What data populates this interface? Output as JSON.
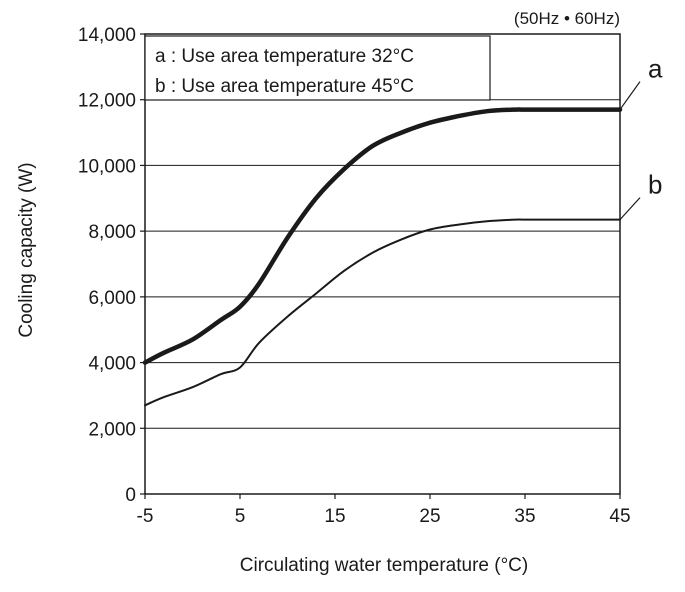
{
  "chart_data": {
    "type": "line",
    "title": "",
    "note": "(50Hz • 60Hz)",
    "xlabel": "Circulating water temperature (°C)",
    "ylabel": "Cooling capacity (W)",
    "xlim": [
      -5,
      45
    ],
    "ylim": [
      0,
      14000
    ],
    "x_ticks": [
      -5,
      5,
      15,
      25,
      35,
      45
    ],
    "x_tick_labels": [
      "-5",
      "5",
      "15",
      "25",
      "35",
      "45"
    ],
    "y_ticks": [
      0,
      2000,
      4000,
      6000,
      8000,
      10000,
      12000,
      14000
    ],
    "y_tick_labels": [
      "0",
      "2,000",
      "4,000",
      "6,000",
      "8,000",
      "10,000",
      "12,000",
      "14,000"
    ],
    "grid": "horizontal",
    "legend": {
      "position": "top-left",
      "entries": [
        "a : Use area temperature 32°C",
        "b : Use area temperature 45°C"
      ]
    },
    "series": [
      {
        "name": "a",
        "label": "a",
        "color": "#1a1a1a",
        "x": [
          -5,
          -3,
          0,
          3,
          5,
          7,
          10,
          13,
          16,
          19,
          22,
          25,
          28,
          31,
          34,
          35,
          40,
          45
        ],
        "y": [
          4000,
          4300,
          4700,
          5300,
          5700,
          6400,
          7800,
          9000,
          9900,
          10600,
          11000,
          11300,
          11500,
          11650,
          11700,
          11700,
          11700,
          11700
        ]
      },
      {
        "name": "b",
        "label": "b",
        "color": "#1a1a1a",
        "x": [
          -5,
          -3,
          0,
          3,
          5,
          7,
          10,
          13,
          16,
          19,
          22,
          25,
          28,
          31,
          34,
          35,
          40,
          45
        ],
        "y": [
          2700,
          2950,
          3250,
          3650,
          3850,
          4600,
          5400,
          6100,
          6800,
          7350,
          7750,
          8050,
          8200,
          8300,
          8350,
          8350,
          8350,
          8350
        ]
      }
    ]
  }
}
